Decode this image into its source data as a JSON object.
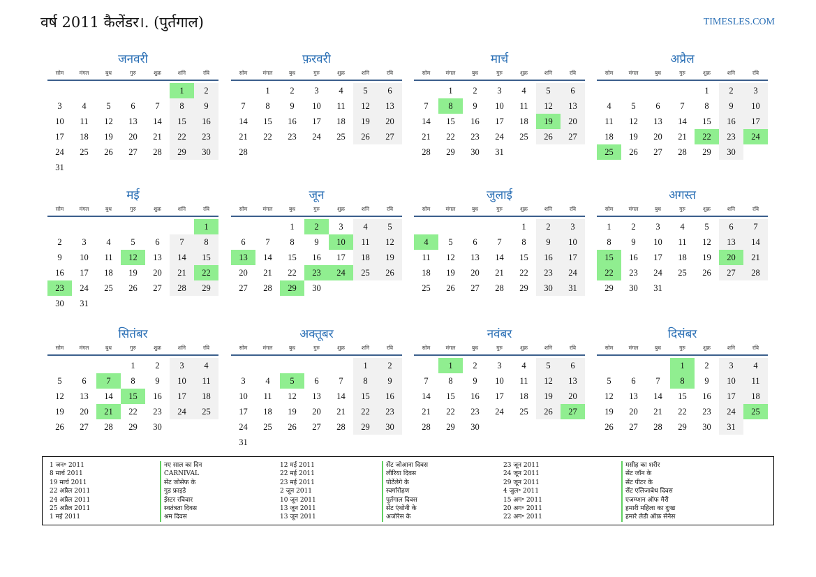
{
  "header": {
    "title": "वर्ष 2011 कैलेंडर।. (पुर्तगाल)",
    "site": "TIMESLES.COM"
  },
  "weekday_labels": [
    "सोम",
    "मंगल",
    "बुध",
    "गुरु",
    "शुक्र",
    "शनि",
    "रवि"
  ],
  "months": [
    {
      "name": "जनवरी",
      "offset": 5,
      "days": 31,
      "holidays": [
        1
      ]
    },
    {
      "name": "फ़रवरी",
      "offset": 1,
      "days": 28,
      "holidays": []
    },
    {
      "name": "मार्च",
      "offset": 1,
      "days": 31,
      "holidays": [
        8,
        19
      ]
    },
    {
      "name": "अप्रैल",
      "offset": 4,
      "days": 30,
      "holidays": [
        22,
        24,
        25
      ]
    },
    {
      "name": "मई",
      "offset": 6,
      "days": 31,
      "holidays": [
        1,
        12,
        22,
        23
      ]
    },
    {
      "name": "जून",
      "offset": 2,
      "days": 30,
      "holidays": [
        2,
        10,
        13,
        23,
        24,
        29
      ]
    },
    {
      "name": "जुलाई",
      "offset": 4,
      "days": 31,
      "holidays": [
        4
      ]
    },
    {
      "name": "अगस्त",
      "offset": 0,
      "days": 31,
      "holidays": [
        15,
        20,
        22
      ]
    },
    {
      "name": "सितंबर",
      "offset": 3,
      "days": 30,
      "holidays": [
        7,
        15,
        21
      ]
    },
    {
      "name": "अक्तूबर",
      "offset": 5,
      "days": 31,
      "holidays": [
        5
      ]
    },
    {
      "name": "नवंबर",
      "offset": 1,
      "days": 30,
      "holidays": [
        1,
        27
      ]
    },
    {
      "name": "दिसंबर",
      "offset": 3,
      "days": 31,
      "holidays": [
        1,
        8,
        25
      ]
    }
  ],
  "holiday_list": [
    {
      "dates": [
        "1 जन॰ 2011",
        "8 मार्च 2011",
        "19 मार्च 2011",
        "22 अप्रैल 2011",
        "24 अप्रैल 2011",
        "25 अप्रैल 2011",
        "1 मई 2011"
      ],
      "names": [
        "नए साल का दिन",
        "CARNIVAL",
        "सेंट जोसेफ के",
        "गुड फ्राइडे",
        "ईस्टर रविवार",
        "स्वतंत्रता दिवस",
        "श्रम दिवस"
      ]
    },
    {
      "dates": [
        "12 मई 2011",
        "22 मई 2011",
        "23 मई 2011",
        "2 जून 2011",
        "10 जून 2011",
        "13 जून 2011",
        "13 जून 2011"
      ],
      "names": [
        "सेंट जोआना दिवस",
        "लीरिया दिवस",
        "पोर्टेलेगे के",
        "स्वर्गारोहण",
        "पुर्तगाल दिवस",
        "सेंट एंथोनी के",
        "अजोरेस के"
      ]
    },
    {
      "dates": [
        "23 जून 2011",
        "24 जून 2011",
        "29 जून 2011",
        "4 जुल॰ 2011",
        "15 अग॰ 2011",
        "20 अग॰ 2011",
        "22 अग॰ 2011"
      ],
      "names": [
        "मसीह का शरीर",
        "सेंट जॉन के",
        "सेंट पीटर के",
        "सेंट एलिजाबेथ दिवस",
        "एजम्प्शन ऑफ मैरी",
        "हमारी महिला का दुःख",
        "हमारे लेडी ऑफ़ सेनेस"
      ]
    }
  ]
}
